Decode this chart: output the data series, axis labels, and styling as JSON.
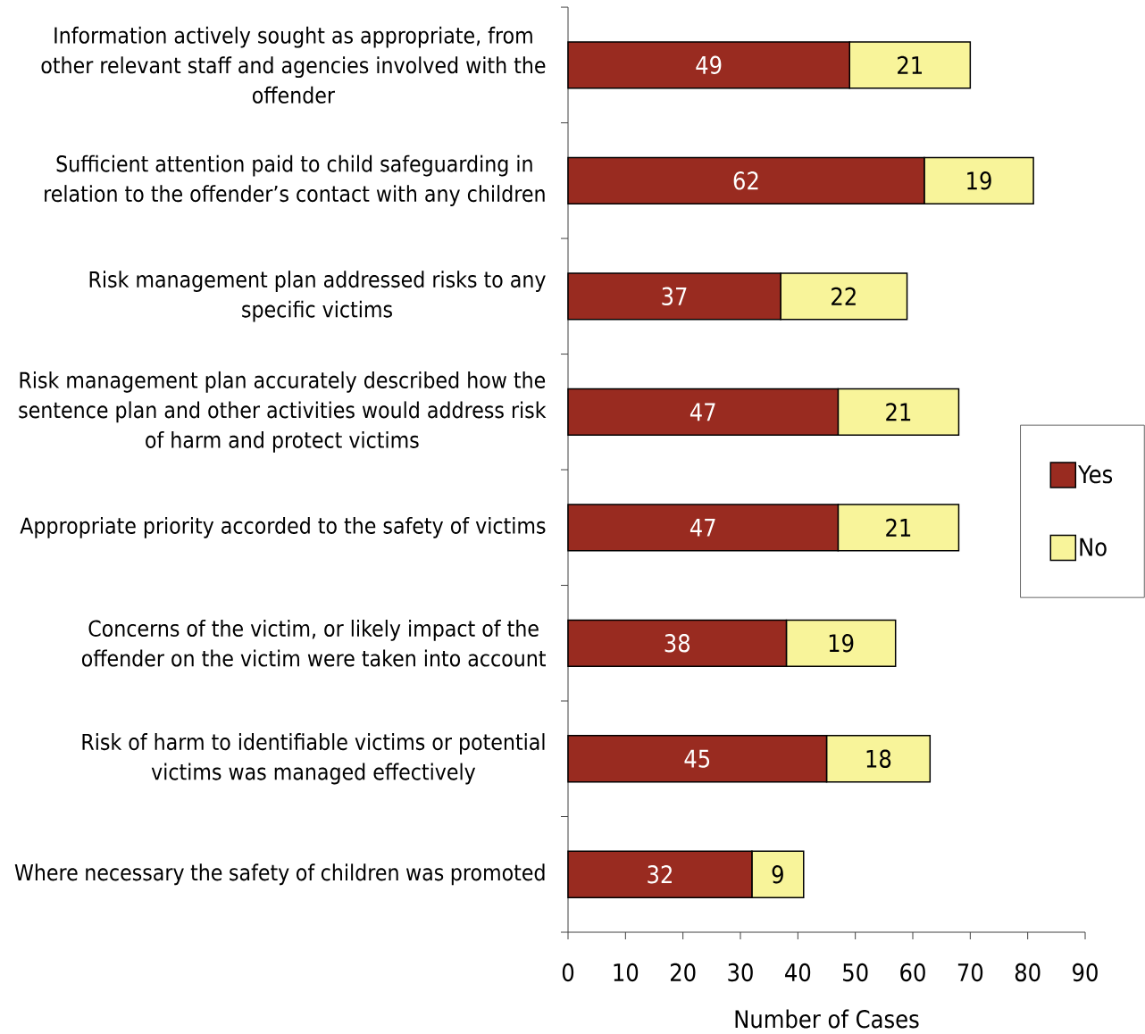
{
  "chart_data": {
    "type": "bar",
    "orientation": "horizontal",
    "stacked": true,
    "categories": [
      "Information actively sought as appropriate, from other relevant staff and agencies involved with the offender",
      "Sufficient attention paid to child safeguarding in relation to the offender’s contact with any children",
      "Risk management plan addressed risks to any specific victims",
      "Risk management plan accurately described how the sentence plan and other activities would address risk of harm and protect victims",
      "Appropriate priority accorded to the safety of victims",
      "Concerns of the victim, or likely impact of the offender on the victim were taken into account",
      "Risk of harm to identifiable victims or potential victims was managed effectively",
      "Where necessary the safety of children was promoted"
    ],
    "series": [
      {
        "name": "Yes",
        "color": "#992b20",
        "values": [
          49,
          62,
          37,
          47,
          47,
          38,
          45,
          32
        ]
      },
      {
        "name": "No",
        "color": "#f8f49a",
        "values": [
          21,
          19,
          22,
          21,
          21,
          19,
          18,
          9
        ]
      }
    ],
    "xlabel": "Number of Cases",
    "xlim": [
      0,
      90
    ],
    "xticks": [
      0,
      10,
      20,
      30,
      40,
      50,
      60,
      70,
      80,
      90
    ],
    "data_labels": true,
    "legend": "right"
  }
}
